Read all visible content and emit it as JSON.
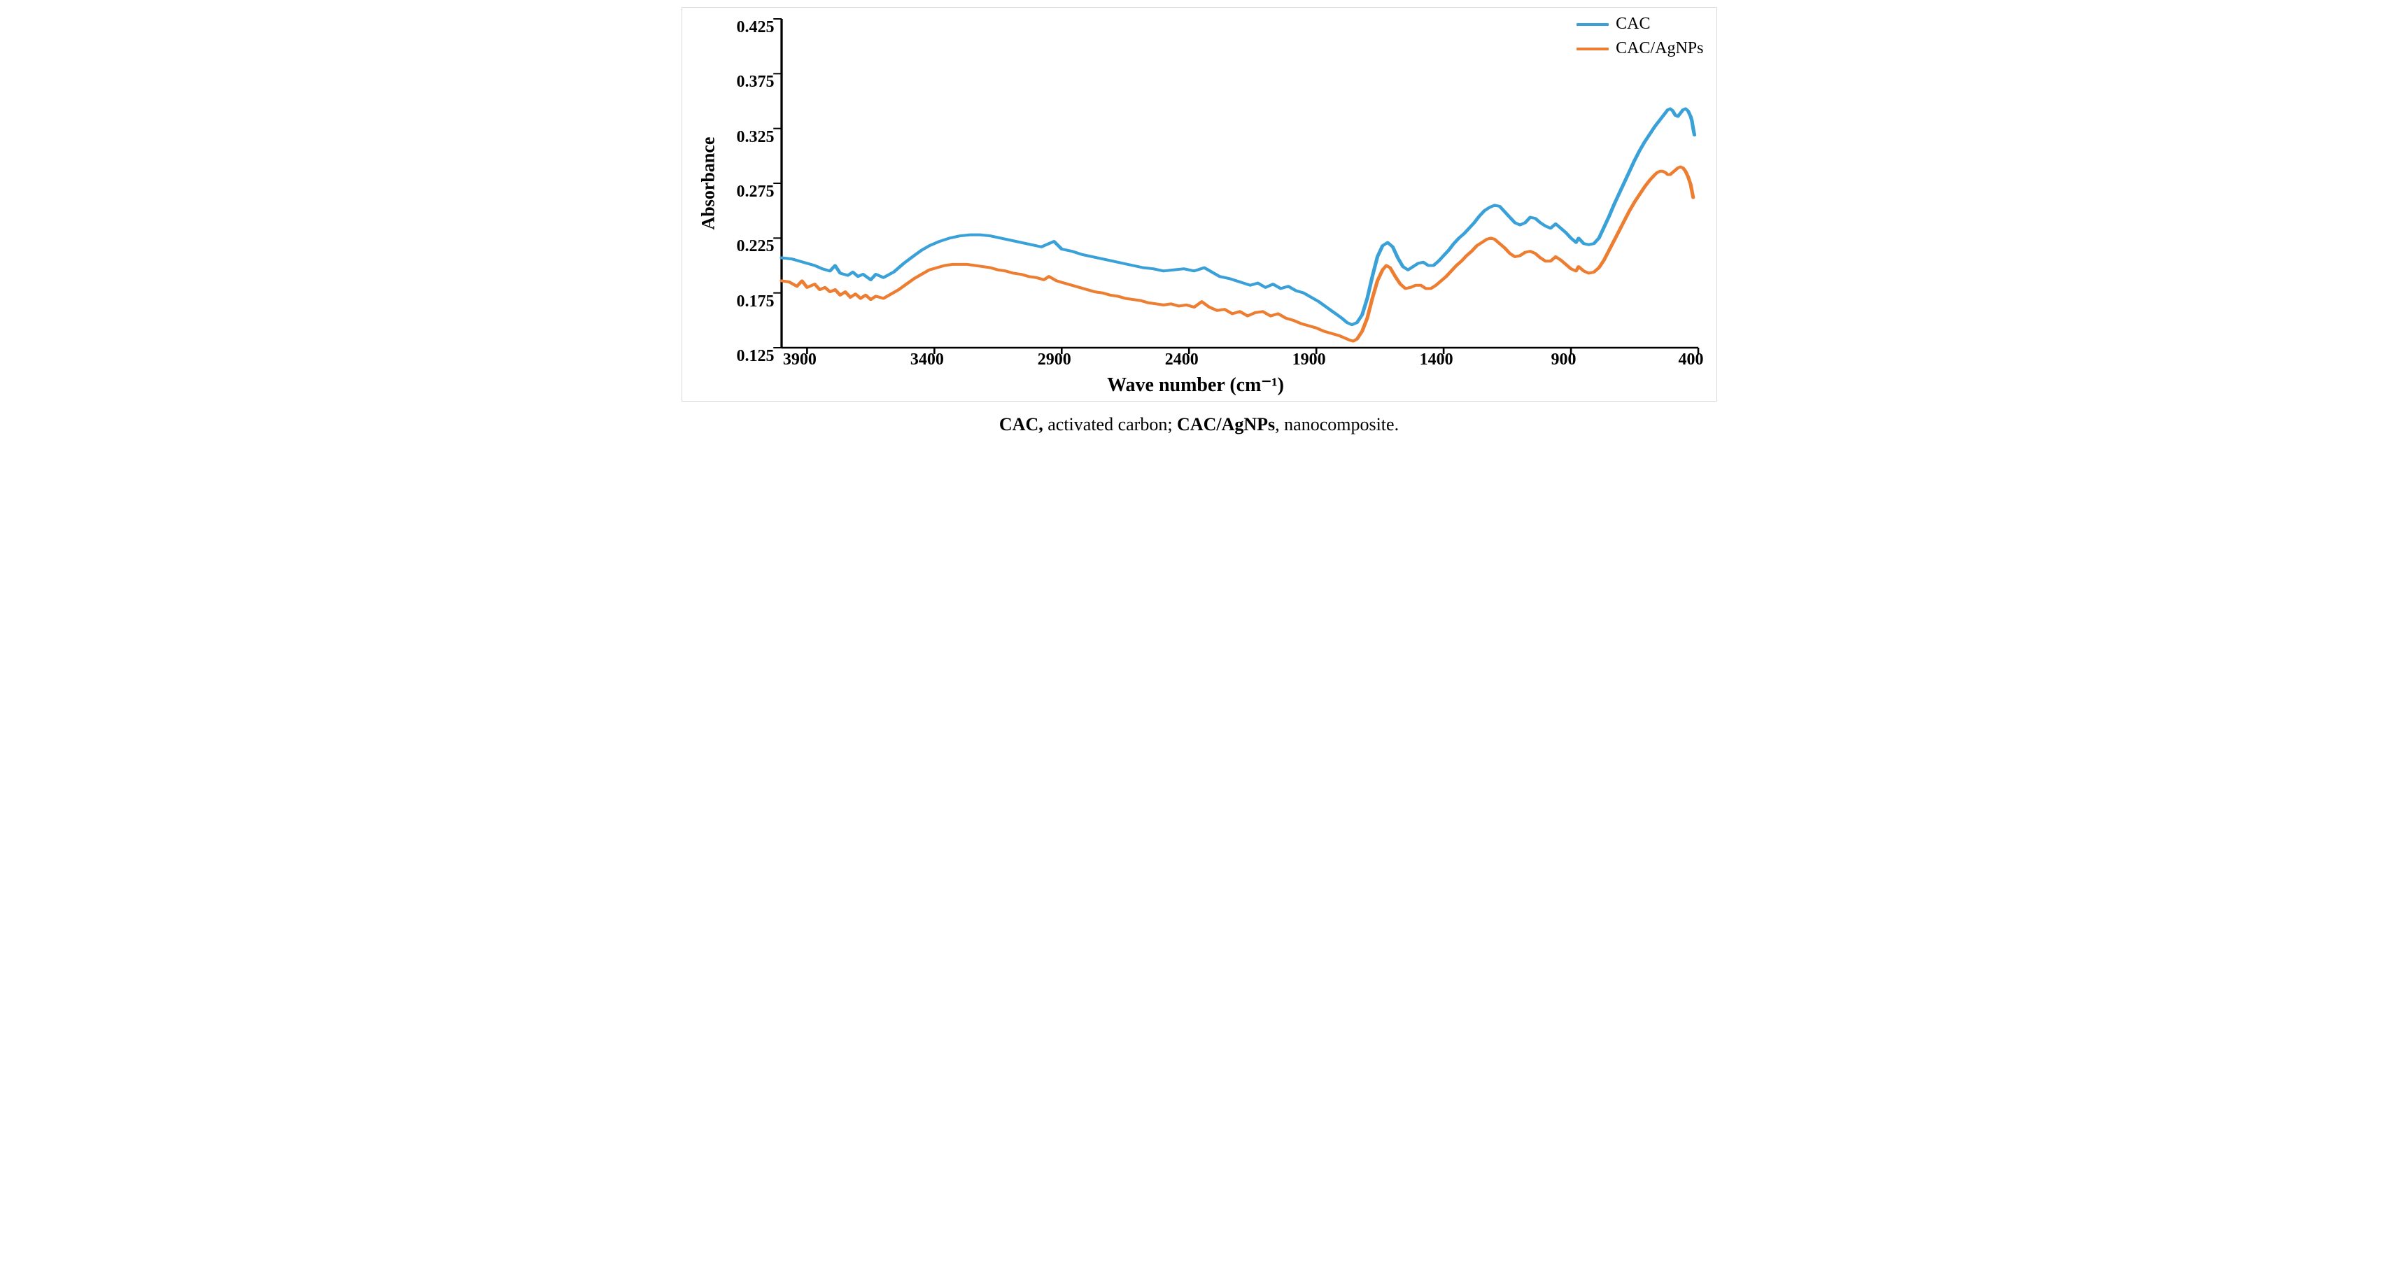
{
  "chart": {
    "type": "line",
    "background_color": "#ffffff",
    "frame_border_color": "#d9d9d9",
    "axis_color": "#000000",
    "axis_width": 2.5,
    "line_width": 4,
    "xlabel": "Wave number  (cm⁻¹)",
    "ylabel": "Absorbance",
    "label_fontsize": 26,
    "tick_fontsize": 24,
    "x_reversed": true,
    "xlim": [
      4000,
      400
    ],
    "ylim": [
      0.125,
      0.425
    ],
    "xticks": [
      3900,
      3400,
      2900,
      2400,
      1900,
      1400,
      900,
      400
    ],
    "yticks": [
      0.125,
      0.175,
      0.225,
      0.275,
      0.325,
      0.375,
      0.425
    ],
    "ytick_labels": [
      "0.125",
      "0.175",
      "0.225",
      "0.275",
      "0.325",
      "0.375",
      "0.425"
    ],
    "legend": {
      "position": "top-right",
      "fontsize": 24,
      "swatch_width": 46,
      "items": [
        {
          "label": "CAC",
          "color": "#39a0d8"
        },
        {
          "label": "CAC/AgNPs",
          "color": "#ed7d31"
        }
      ]
    },
    "series": [
      {
        "name": "CAC",
        "color": "#39a0d8",
        "points": [
          [
            4000,
            0.207
          ],
          [
            3960,
            0.206
          ],
          [
            3930,
            0.204
          ],
          [
            3900,
            0.202
          ],
          [
            3870,
            0.2
          ],
          [
            3840,
            0.197
          ],
          [
            3810,
            0.195
          ],
          [
            3790,
            0.2
          ],
          [
            3770,
            0.193
          ],
          [
            3740,
            0.191
          ],
          [
            3720,
            0.194
          ],
          [
            3700,
            0.19
          ],
          [
            3680,
            0.192
          ],
          [
            3650,
            0.187
          ],
          [
            3630,
            0.192
          ],
          [
            3600,
            0.189
          ],
          [
            3560,
            0.194
          ],
          [
            3520,
            0.202
          ],
          [
            3480,
            0.209
          ],
          [
            3450,
            0.214
          ],
          [
            3420,
            0.218
          ],
          [
            3380,
            0.222
          ],
          [
            3340,
            0.225
          ],
          [
            3300,
            0.227
          ],
          [
            3260,
            0.228
          ],
          [
            3220,
            0.228
          ],
          [
            3180,
            0.227
          ],
          [
            3140,
            0.225
          ],
          [
            3100,
            0.223
          ],
          [
            3060,
            0.221
          ],
          [
            3020,
            0.219
          ],
          [
            2980,
            0.217
          ],
          [
            2930,
            0.222
          ],
          [
            2900,
            0.215
          ],
          [
            2860,
            0.213
          ],
          [
            2820,
            0.21
          ],
          [
            2780,
            0.208
          ],
          [
            2740,
            0.206
          ],
          [
            2700,
            0.204
          ],
          [
            2660,
            0.202
          ],
          [
            2620,
            0.2
          ],
          [
            2580,
            0.198
          ],
          [
            2540,
            0.197
          ],
          [
            2500,
            0.195
          ],
          [
            2460,
            0.196
          ],
          [
            2420,
            0.197
          ],
          [
            2380,
            0.195
          ],
          [
            2340,
            0.198
          ],
          [
            2310,
            0.194
          ],
          [
            2280,
            0.19
          ],
          [
            2240,
            0.188
          ],
          [
            2200,
            0.185
          ],
          [
            2160,
            0.182
          ],
          [
            2130,
            0.184
          ],
          [
            2100,
            0.18
          ],
          [
            2070,
            0.183
          ],
          [
            2040,
            0.179
          ],
          [
            2010,
            0.181
          ],
          [
            1980,
            0.177
          ],
          [
            1950,
            0.175
          ],
          [
            1920,
            0.171
          ],
          [
            1890,
            0.167
          ],
          [
            1860,
            0.162
          ],
          [
            1830,
            0.157
          ],
          [
            1800,
            0.152
          ],
          [
            1780,
            0.148
          ],
          [
            1760,
            0.146
          ],
          [
            1740,
            0.148
          ],
          [
            1720,
            0.155
          ],
          [
            1700,
            0.17
          ],
          [
            1680,
            0.19
          ],
          [
            1660,
            0.208
          ],
          [
            1640,
            0.218
          ],
          [
            1620,
            0.221
          ],
          [
            1600,
            0.217
          ],
          [
            1580,
            0.207
          ],
          [
            1560,
            0.199
          ],
          [
            1540,
            0.196
          ],
          [
            1520,
            0.199
          ],
          [
            1500,
            0.202
          ],
          [
            1480,
            0.203
          ],
          [
            1460,
            0.2
          ],
          [
            1440,
            0.2
          ],
          [
            1420,
            0.204
          ],
          [
            1400,
            0.209
          ],
          [
            1380,
            0.214
          ],
          [
            1360,
            0.22
          ],
          [
            1340,
            0.225
          ],
          [
            1320,
            0.229
          ],
          [
            1300,
            0.234
          ],
          [
            1280,
            0.239
          ],
          [
            1260,
            0.245
          ],
          [
            1240,
            0.25
          ],
          [
            1220,
            0.253
          ],
          [
            1200,
            0.255
          ],
          [
            1180,
            0.254
          ],
          [
            1160,
            0.249
          ],
          [
            1140,
            0.244
          ],
          [
            1120,
            0.239
          ],
          [
            1100,
            0.237
          ],
          [
            1080,
            0.239
          ],
          [
            1060,
            0.244
          ],
          [
            1040,
            0.243
          ],
          [
            1020,
            0.239
          ],
          [
            1000,
            0.236
          ],
          [
            980,
            0.234
          ],
          [
            960,
            0.238
          ],
          [
            940,
            0.234
          ],
          [
            920,
            0.23
          ],
          [
            900,
            0.225
          ],
          [
            880,
            0.221
          ],
          [
            870,
            0.225
          ],
          [
            850,
            0.22
          ],
          [
            830,
            0.219
          ],
          [
            810,
            0.22
          ],
          [
            790,
            0.225
          ],
          [
            770,
            0.235
          ],
          [
            750,
            0.245
          ],
          [
            730,
            0.256
          ],
          [
            710,
            0.266
          ],
          [
            690,
            0.276
          ],
          [
            670,
            0.286
          ],
          [
            650,
            0.296
          ],
          [
            630,
            0.305
          ],
          [
            610,
            0.313
          ],
          [
            590,
            0.32
          ],
          [
            570,
            0.327
          ],
          [
            550,
            0.333
          ],
          [
            530,
            0.339
          ],
          [
            520,
            0.342
          ],
          [
            510,
            0.343
          ],
          [
            500,
            0.341
          ],
          [
            490,
            0.337
          ],
          [
            480,
            0.336
          ],
          [
            470,
            0.339
          ],
          [
            460,
            0.342
          ],
          [
            450,
            0.343
          ],
          [
            440,
            0.341
          ],
          [
            430,
            0.336
          ],
          [
            425,
            0.332
          ],
          [
            420,
            0.325
          ],
          [
            415,
            0.319
          ]
        ]
      },
      {
        "name": "CAC/AgNPs",
        "color": "#ed7d31",
        "points": [
          [
            4000,
            0.186
          ],
          [
            3970,
            0.185
          ],
          [
            3940,
            0.181
          ],
          [
            3920,
            0.186
          ],
          [
            3900,
            0.18
          ],
          [
            3870,
            0.183
          ],
          [
            3850,
            0.178
          ],
          [
            3830,
            0.18
          ],
          [
            3810,
            0.176
          ],
          [
            3790,
            0.178
          ],
          [
            3770,
            0.173
          ],
          [
            3750,
            0.176
          ],
          [
            3730,
            0.171
          ],
          [
            3710,
            0.174
          ],
          [
            3690,
            0.17
          ],
          [
            3670,
            0.173
          ],
          [
            3650,
            0.169
          ],
          [
            3630,
            0.172
          ],
          [
            3600,
            0.17
          ],
          [
            3570,
            0.174
          ],
          [
            3540,
            0.178
          ],
          [
            3510,
            0.183
          ],
          [
            3480,
            0.188
          ],
          [
            3450,
            0.192
          ],
          [
            3420,
            0.196
          ],
          [
            3390,
            0.198
          ],
          [
            3360,
            0.2
          ],
          [
            3330,
            0.201
          ],
          [
            3300,
            0.201
          ],
          [
            3270,
            0.201
          ],
          [
            3240,
            0.2
          ],
          [
            3210,
            0.199
          ],
          [
            3180,
            0.198
          ],
          [
            3150,
            0.196
          ],
          [
            3120,
            0.195
          ],
          [
            3090,
            0.193
          ],
          [
            3060,
            0.192
          ],
          [
            3030,
            0.19
          ],
          [
            3000,
            0.189
          ],
          [
            2970,
            0.187
          ],
          [
            2950,
            0.19
          ],
          [
            2920,
            0.186
          ],
          [
            2890,
            0.184
          ],
          [
            2860,
            0.182
          ],
          [
            2830,
            0.18
          ],
          [
            2800,
            0.178
          ],
          [
            2770,
            0.176
          ],
          [
            2740,
            0.175
          ],
          [
            2710,
            0.173
          ],
          [
            2680,
            0.172
          ],
          [
            2650,
            0.17
          ],
          [
            2620,
            0.169
          ],
          [
            2590,
            0.168
          ],
          [
            2560,
            0.166
          ],
          [
            2530,
            0.165
          ],
          [
            2500,
            0.164
          ],
          [
            2470,
            0.165
          ],
          [
            2440,
            0.163
          ],
          [
            2410,
            0.164
          ],
          [
            2380,
            0.162
          ],
          [
            2350,
            0.167
          ],
          [
            2320,
            0.162
          ],
          [
            2290,
            0.159
          ],
          [
            2260,
            0.16
          ],
          [
            2230,
            0.156
          ],
          [
            2200,
            0.158
          ],
          [
            2170,
            0.154
          ],
          [
            2140,
            0.157
          ],
          [
            2110,
            0.158
          ],
          [
            2080,
            0.154
          ],
          [
            2050,
            0.156
          ],
          [
            2020,
            0.152
          ],
          [
            1990,
            0.15
          ],
          [
            1960,
            0.147
          ],
          [
            1930,
            0.145
          ],
          [
            1900,
            0.143
          ],
          [
            1870,
            0.14
          ],
          [
            1840,
            0.138
          ],
          [
            1810,
            0.136
          ],
          [
            1790,
            0.134
          ],
          [
            1770,
            0.132
          ],
          [
            1755,
            0.131
          ],
          [
            1740,
            0.133
          ],
          [
            1720,
            0.14
          ],
          [
            1700,
            0.152
          ],
          [
            1680,
            0.17
          ],
          [
            1660,
            0.186
          ],
          [
            1640,
            0.196
          ],
          [
            1625,
            0.2
          ],
          [
            1610,
            0.198
          ],
          [
            1590,
            0.19
          ],
          [
            1570,
            0.183
          ],
          [
            1550,
            0.179
          ],
          [
            1530,
            0.18
          ],
          [
            1510,
            0.182
          ],
          [
            1490,
            0.182
          ],
          [
            1470,
            0.179
          ],
          [
            1450,
            0.179
          ],
          [
            1430,
            0.182
          ],
          [
            1410,
            0.186
          ],
          [
            1390,
            0.19
          ],
          [
            1370,
            0.195
          ],
          [
            1350,
            0.2
          ],
          [
            1330,
            0.204
          ],
          [
            1310,
            0.209
          ],
          [
            1290,
            0.213
          ],
          [
            1270,
            0.218
          ],
          [
            1250,
            0.221
          ],
          [
            1230,
            0.224
          ],
          [
            1215,
            0.225
          ],
          [
            1200,
            0.224
          ],
          [
            1180,
            0.22
          ],
          [
            1160,
            0.216
          ],
          [
            1140,
            0.211
          ],
          [
            1120,
            0.208
          ],
          [
            1100,
            0.209
          ],
          [
            1080,
            0.212
          ],
          [
            1060,
            0.213
          ],
          [
            1040,
            0.211
          ],
          [
            1020,
            0.207
          ],
          [
            1000,
            0.204
          ],
          [
            980,
            0.204
          ],
          [
            960,
            0.208
          ],
          [
            940,
            0.205
          ],
          [
            920,
            0.201
          ],
          [
            900,
            0.197
          ],
          [
            880,
            0.195
          ],
          [
            870,
            0.199
          ],
          [
            850,
            0.195
          ],
          [
            830,
            0.193
          ],
          [
            810,
            0.194
          ],
          [
            790,
            0.198
          ],
          [
            770,
            0.205
          ],
          [
            750,
            0.214
          ],
          [
            730,
            0.223
          ],
          [
            710,
            0.232
          ],
          [
            690,
            0.241
          ],
          [
            670,
            0.25
          ],
          [
            650,
            0.258
          ],
          [
            630,
            0.265
          ],
          [
            610,
            0.272
          ],
          [
            590,
            0.278
          ],
          [
            570,
            0.283
          ],
          [
            560,
            0.285
          ],
          [
            550,
            0.286
          ],
          [
            540,
            0.286
          ],
          [
            530,
            0.285
          ],
          [
            520,
            0.283
          ],
          [
            510,
            0.283
          ],
          [
            500,
            0.285
          ],
          [
            490,
            0.287
          ],
          [
            480,
            0.289
          ],
          [
            470,
            0.29
          ],
          [
            460,
            0.289
          ],
          [
            450,
            0.286
          ],
          [
            440,
            0.281
          ],
          [
            430,
            0.274
          ],
          [
            425,
            0.268
          ],
          [
            420,
            0.262
          ]
        ]
      }
    ]
  },
  "caption": {
    "parts": [
      {
        "text": "CAC, ",
        "bold": true
      },
      {
        "text": "activated carbon; ",
        "bold": false
      },
      {
        "text": "CAC/AgNPs",
        "bold": true
      },
      {
        "text": ", nanocomposite.",
        "bold": false
      }
    ]
  }
}
